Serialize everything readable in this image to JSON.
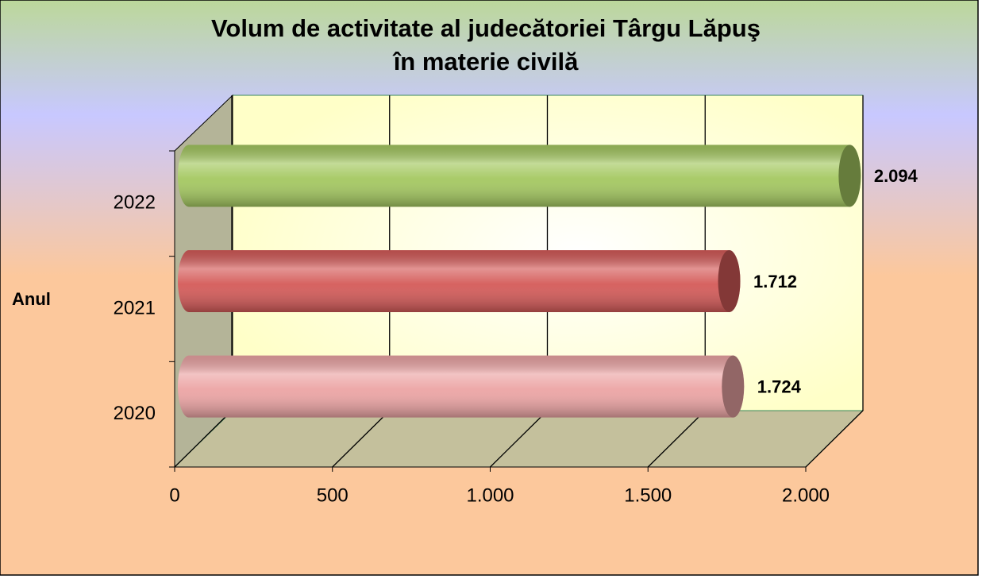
{
  "chart_data": {
    "type": "bar3d-horizontal",
    "title": [
      "Volum de activitate al judecătoriei Târgu Lăpuş",
      "în materie civilă"
    ],
    "y_label": "Anul",
    "categories": [
      "2020",
      "2021",
      "2022"
    ],
    "values": [
      1724,
      1712,
      2094
    ],
    "value_labels": [
      "1.724",
      "1.712",
      "2.094"
    ],
    "colors": [
      "#eca4a4",
      "#d45a58",
      "#a4c860"
    ],
    "xlim": [
      0,
      2000
    ],
    "xticks": [
      0,
      500,
      {
        "value": 1000,
        "label": "1.000"
      },
      {
        "value": 1500,
        "label": "1.500"
      },
      {
        "value": 2000,
        "label": "2.000"
      }
    ],
    "grid": true
  }
}
